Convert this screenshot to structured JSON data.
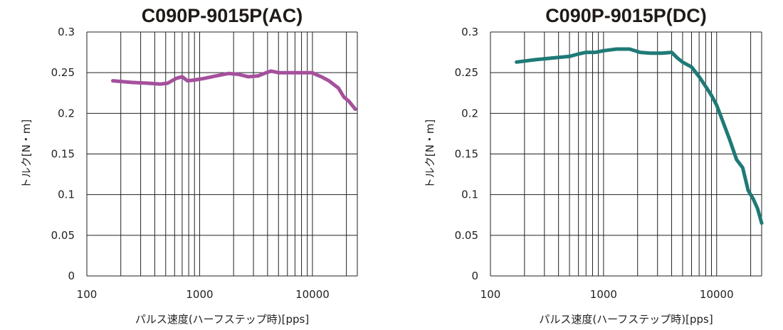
{
  "chart_data": [
    {
      "type": "line",
      "title": "C090P-9015P(AC)",
      "xlabel": "パルス速度(ハーフステップ時)[pps]",
      "ylabel": "トルク[N・m]",
      "x_scale": "log",
      "xlim": [
        100,
        25000
      ],
      "ylim": [
        0,
        0.3
      ],
      "x_ticks": [
        "100",
        "1000",
        "10000"
      ],
      "y_ticks": [
        "0",
        "0.05",
        "0.1",
        "0.15",
        "0.2",
        "0.25",
        "0.3"
      ],
      "grid": true,
      "series_color": "#a5509d",
      "x": [
        170,
        250,
        350,
        450,
        520,
        620,
        700,
        780,
        900,
        1100,
        1400,
        1800,
        2200,
        2700,
        3300,
        3900,
        4300,
        5000,
        6000,
        8000,
        10000,
        11000,
        12000,
        14000,
        17000,
        19000,
        21000,
        24000
      ],
      "y": [
        0.24,
        0.238,
        0.237,
        0.236,
        0.237,
        0.243,
        0.245,
        0.24,
        0.241,
        0.243,
        0.246,
        0.249,
        0.248,
        0.245,
        0.246,
        0.25,
        0.252,
        0.25,
        0.25,
        0.25,
        0.25,
        0.247,
        0.245,
        0.24,
        0.231,
        0.22,
        0.215,
        0.205
      ]
    },
    {
      "type": "line",
      "title": "C090P-9015P(DC)",
      "xlabel": "パルス速度(ハーフステップ時)[pps]",
      "ylabel": "トルク[N・m]",
      "x_scale": "log",
      "xlim": [
        100,
        25000
      ],
      "ylim": [
        0,
        0.3
      ],
      "x_ticks": [
        "100",
        "1000",
        "10000"
      ],
      "y_ticks": [
        "0",
        "0.05",
        "0.1",
        "0.15",
        "0.2",
        "0.25",
        "0.3"
      ],
      "grid": true,
      "series_color": "#1f7a77",
      "x": [
        170,
        250,
        350,
        500,
        600,
        700,
        850,
        1000,
        1300,
        1700,
        2100,
        2600,
        3300,
        4000,
        4500,
        5000,
        6000,
        7000,
        8000,
        9000,
        10000,
        11000,
        13000,
        15000,
        17000,
        19000,
        21000,
        23000,
        25000
      ],
      "y": [
        0.263,
        0.266,
        0.268,
        0.27,
        0.273,
        0.275,
        0.275,
        0.277,
        0.279,
        0.279,
        0.275,
        0.274,
        0.274,
        0.275,
        0.268,
        0.263,
        0.257,
        0.245,
        0.233,
        0.222,
        0.21,
        0.195,
        0.168,
        0.143,
        0.133,
        0.105,
        0.095,
        0.083,
        0.065
      ]
    }
  ]
}
